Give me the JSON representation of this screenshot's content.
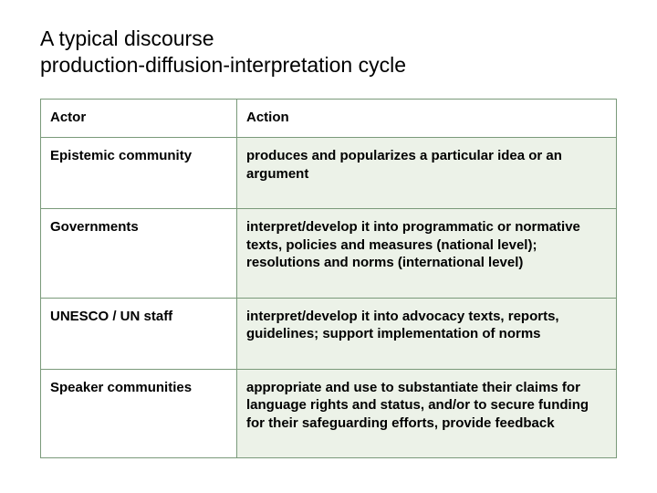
{
  "title_line1": "A typical discourse",
  "title_line2": "production-diffusion-interpretation cycle",
  "table": {
    "columns": [
      "Actor",
      "Action"
    ],
    "rows": [
      {
        "actor": "Epistemic community",
        "action": "produces and popularizes a particular idea or an argument"
      },
      {
        "actor": "Governments",
        "action": "interpret/develop it into programmatic or normative texts, policies and measures (national level); resolutions and norms (international level)"
      },
      {
        "actor": "UNESCO / UN staff",
        "action": "interpret/develop it into advocacy texts, reports, guidelines; support implementation of norms"
      },
      {
        "actor": "Speaker communities",
        "action": "appropriate and use to substantiate their claims for language rights and status, and/or to secure funding for their safeguarding efforts, provide feedback"
      }
    ],
    "colors": {
      "border": "#7a9a7a",
      "action_bg": "#ecf2e8",
      "actor_bg": "#ffffff",
      "text": "#000000"
    }
  }
}
